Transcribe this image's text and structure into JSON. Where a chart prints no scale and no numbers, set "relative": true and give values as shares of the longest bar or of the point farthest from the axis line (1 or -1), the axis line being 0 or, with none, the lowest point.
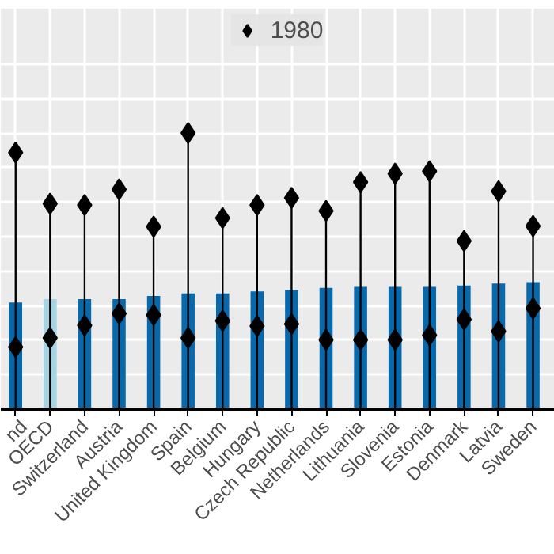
{
  "chart_data": {
    "type": "bar",
    "relative": true,
    "grid": true,
    "legend": "top",
    "marker": "diamond",
    "categories": [
      "nd",
      "OECD",
      "Switzerland",
      "Austria",
      "United Kingdom",
      "Spain",
      "Belgium",
      "Hungary",
      "Czech Republic",
      "Netherlands",
      "Lithuania",
      "Slovenia",
      "Estonia",
      "Denmark",
      "Latvia",
      "Sweden"
    ],
    "series": [
      {
        "colors": [
          "#0868ac",
          "#a6d3e3",
          "#0868ac",
          "#0868ac",
          "#0868ac",
          "#0868ac",
          "#0868ac",
          "#0868ac",
          "#0868ac",
          "#0868ac",
          "#0868ac",
          "#0868ac",
          "#0868ac",
          "#0868ac",
          "#0868ac",
          "#0868ac"
        ],
        "values": [
          0.386,
          0.398,
          0.398,
          0.398,
          0.41,
          0.419,
          0.419,
          0.426,
          0.431,
          0.439,
          0.443,
          0.443,
          0.443,
          0.448,
          0.455,
          0.46
        ]
      },
      {
        "type": "lollipop",
        "name": "1980",
        "color": "#000000",
        "values": [
          0.929,
          0.744,
          0.739,
          0.796,
          0.661,
          1,
          0.692,
          0.739,
          0.765,
          0.718,
          0.822,
          0.853,
          0.862,
          0.609,
          0.789,
          0.663
        ]
      },
      {
        "type": "scatter",
        "color": "#000000",
        "values": [
          0.225,
          0.258,
          0.303,
          0.346,
          0.341,
          0.258,
          0.32,
          0.301,
          0.308,
          0.251,
          0.251,
          0.251,
          0.268,
          0.325,
          0.282,
          0.365
        ]
      }
    ]
  }
}
